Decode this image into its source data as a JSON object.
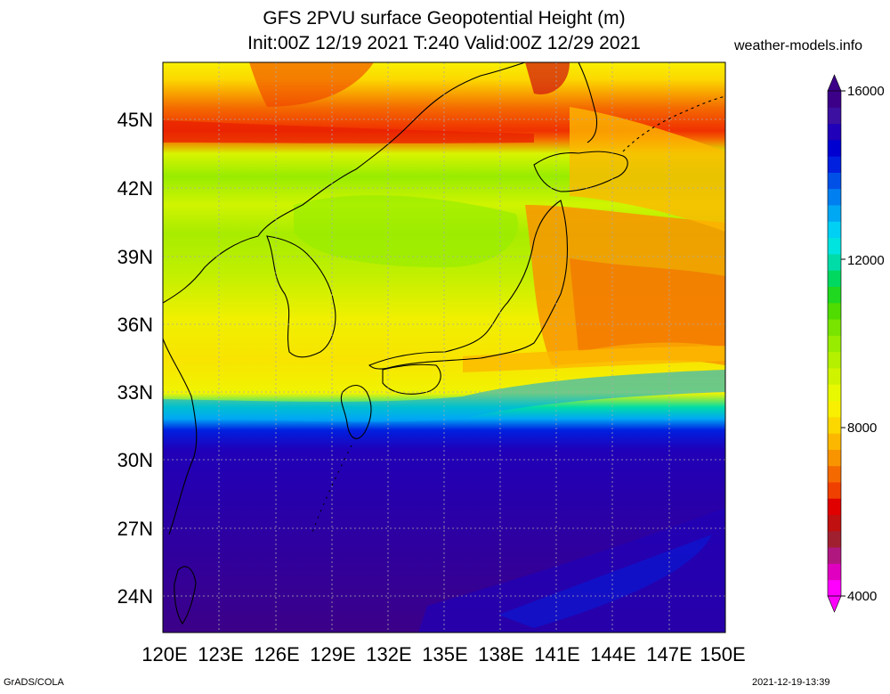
{
  "header": {
    "title_line1": "GFS 2PVU surface Geopotential Height (m)",
    "title_line2": "Init:00Z 12/19 2021 T:240 Valid:00Z 12/29 2021",
    "site": "weather-models.info"
  },
  "footer": {
    "left": "GrADS/COLA",
    "right": "2021-12-19-13:39"
  },
  "map": {
    "lon_labels": [
      "120E",
      "123E",
      "126E",
      "129E",
      "132E",
      "135E",
      "138E",
      "141E",
      "144E",
      "147E",
      "150E"
    ],
    "lat_labels": [
      "45N",
      "42N",
      "39N",
      "36N",
      "33N",
      "30N",
      "27N",
      "24N"
    ]
  },
  "colorbar": {
    "labels": [
      "16000",
      "12000",
      "8000",
      "4000"
    ],
    "colors": [
      "#ff00ff",
      "#e000c0",
      "#b01880",
      "#a02030",
      "#c01010",
      "#e00000",
      "#f04000",
      "#f46a00",
      "#f89400",
      "#fcb800",
      "#fcd800",
      "#f8f000",
      "#e8f800",
      "#d0f400",
      "#b4f000",
      "#98ec00",
      "#78e400",
      "#50dc00",
      "#20d820",
      "#00d860",
      "#00dca8",
      "#00e4e0",
      "#00d0f4",
      "#00a8f4",
      "#0080f0",
      "#0050e8",
      "#0020e0",
      "#0000d0",
      "#2000b8",
      "#3c10a0",
      "#3c0088"
    ]
  }
}
